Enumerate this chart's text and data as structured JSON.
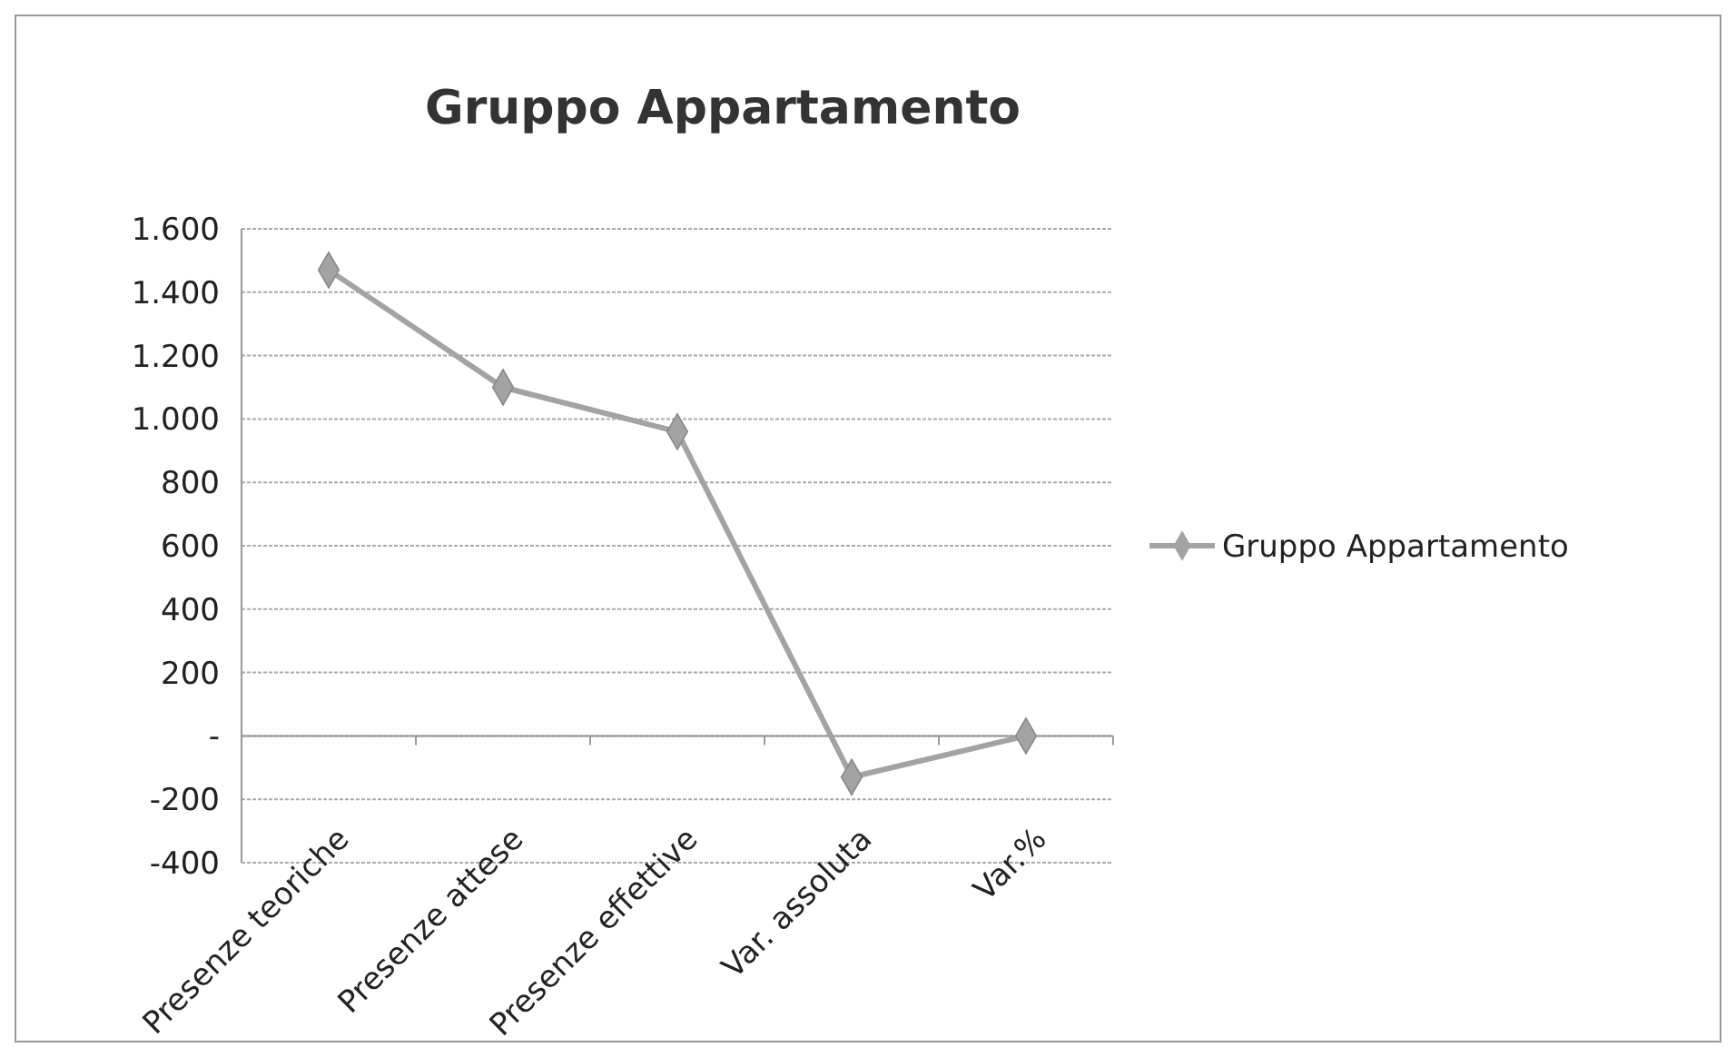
{
  "chart_data": {
    "type": "line",
    "title": "Gruppo Appartamento",
    "categories": [
      "Presenze teoriche",
      "Presenze attese",
      "Presenze effettive",
      "Var. assoluta",
      "Var.%"
    ],
    "series": [
      {
        "name": "Gruppo Appartamento",
        "color": "#a3a3a3",
        "values": [
          1470,
          1100,
          960,
          -130,
          0
        ]
      }
    ],
    "ylim": [
      -400,
      1600
    ],
    "yticks": [
      -400,
      -200,
      {
        "value": 0,
        "label": "-"
      },
      200,
      400,
      600,
      800,
      {
        "value": 1000,
        "label": "1.000"
      },
      {
        "value": 1200,
        "label": "1.200"
      },
      {
        "value": 1400,
        "label": "1.400"
      },
      {
        "value": 1600,
        "label": "1.600"
      }
    ],
    "grid": "y",
    "legend": "right",
    "marker": "diamond",
    "line_style": "solid"
  }
}
